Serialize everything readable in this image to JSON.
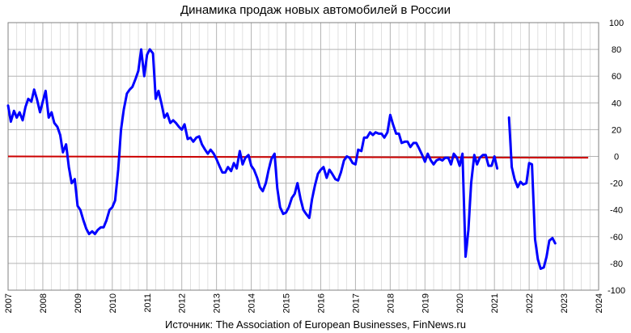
{
  "chart_data": {
    "type": "line",
    "title": "Динамика продаж новых автомобилей в России",
    "source": "Источник: The Association of European Businesses, FinNews.ru",
    "xlabel": "",
    "ylabel": "",
    "xlim": [
      2007,
      2024
    ],
    "ylim": [
      -100,
      100
    ],
    "x_ticks": [
      "2007",
      "2008",
      "2009",
      "2010",
      "2011",
      "2012",
      "2013",
      "2014",
      "2015",
      "2016",
      "2017",
      "2018",
      "2019",
      "2020",
      "2021",
      "2022",
      "2023",
      "2024"
    ],
    "y_ticks": [
      100,
      80,
      60,
      40,
      20,
      0,
      -20,
      -40,
      -60,
      -80,
      -100
    ],
    "grid": true,
    "legend": "none",
    "colors": {
      "series": "#0000ff",
      "zero_line": "#cc0000",
      "grid": "#b4b4b4"
    },
    "series": [
      {
        "segments": [
          [
            [
              2007.0,
              38
            ],
            [
              2007.08,
              26
            ],
            [
              2007.17,
              34
            ],
            [
              2007.25,
              29
            ],
            [
              2007.33,
              33
            ],
            [
              2007.42,
              27
            ],
            [
              2007.5,
              37
            ],
            [
              2007.58,
              43
            ],
            [
              2007.67,
              41
            ],
            [
              2007.75,
              50
            ],
            [
              2007.83,
              43
            ],
            [
              2007.92,
              33
            ],
            [
              2008.0,
              41
            ],
            [
              2008.08,
              49
            ],
            [
              2008.17,
              29
            ],
            [
              2008.25,
              33
            ],
            [
              2008.33,
              25
            ],
            [
              2008.42,
              22
            ],
            [
              2008.5,
              16
            ],
            [
              2008.58,
              3
            ],
            [
              2008.67,
              9
            ],
            [
              2008.75,
              -8
            ],
            [
              2008.83,
              -20
            ],
            [
              2008.92,
              -17
            ],
            [
              2009.0,
              -37
            ],
            [
              2009.08,
              -40
            ],
            [
              2009.17,
              -48
            ],
            [
              2009.25,
              -54
            ],
            [
              2009.33,
              -58
            ],
            [
              2009.42,
              -56
            ],
            [
              2009.5,
              -58
            ],
            [
              2009.58,
              -55
            ],
            [
              2009.67,
              -53
            ],
            [
              2009.75,
              -53
            ],
            [
              2009.83,
              -48
            ],
            [
              2009.92,
              -40
            ],
            [
              2010.0,
              -38
            ],
            [
              2010.08,
              -33
            ],
            [
              2010.17,
              -10
            ],
            [
              2010.25,
              20
            ],
            [
              2010.33,
              35
            ],
            [
              2010.42,
              47
            ],
            [
              2010.5,
              50
            ],
            [
              2010.58,
              52
            ],
            [
              2010.67,
              58
            ],
            [
              2010.75,
              64
            ],
            [
              2010.83,
              80
            ],
            [
              2010.92,
              60
            ],
            [
              2011.0,
              76
            ],
            [
              2011.08,
              80
            ],
            [
              2011.17,
              77
            ],
            [
              2011.25,
              43
            ],
            [
              2011.33,
              49
            ],
            [
              2011.42,
              39
            ],
            [
              2011.5,
              29
            ],
            [
              2011.58,
              32
            ],
            [
              2011.67,
              25
            ],
            [
              2011.75,
              27
            ],
            [
              2011.83,
              25
            ],
            [
              2011.92,
              22
            ],
            [
              2012.0,
              20
            ],
            [
              2012.08,
              24
            ],
            [
              2012.17,
              13
            ],
            [
              2012.25,
              14
            ],
            [
              2012.33,
              11
            ],
            [
              2012.42,
              14
            ],
            [
              2012.5,
              15
            ],
            [
              2012.58,
              9
            ],
            [
              2012.67,
              5
            ],
            [
              2012.75,
              2
            ],
            [
              2012.83,
              5
            ],
            [
              2012.92,
              2
            ],
            [
              2013.0,
              -2
            ],
            [
              2013.08,
              -7
            ],
            [
              2013.17,
              -12
            ],
            [
              2013.25,
              -12
            ],
            [
              2013.33,
              -8
            ],
            [
              2013.42,
              -11
            ],
            [
              2013.5,
              -5
            ],
            [
              2013.58,
              -9
            ],
            [
              2013.67,
              4
            ],
            [
              2013.75,
              -6
            ],
            [
              2013.83,
              -1
            ],
            [
              2013.92,
              1
            ],
            [
              2014.0,
              -7
            ],
            [
              2014.08,
              -10
            ],
            [
              2014.17,
              -16
            ],
            [
              2014.25,
              -23
            ],
            [
              2014.33,
              -26
            ],
            [
              2014.42,
              -20
            ],
            [
              2014.5,
              -10
            ],
            [
              2014.58,
              -2
            ],
            [
              2014.67,
              2
            ],
            [
              2014.75,
              -24
            ],
            [
              2014.83,
              -38
            ],
            [
              2014.92,
              -43
            ],
            [
              2015.0,
              -42
            ],
            [
              2015.08,
              -38
            ],
            [
              2015.17,
              -31
            ],
            [
              2015.25,
              -28
            ],
            [
              2015.33,
              -20
            ],
            [
              2015.42,
              -32
            ],
            [
              2015.5,
              -40
            ],
            [
              2015.58,
              -43
            ],
            [
              2015.67,
              -46
            ],
            [
              2015.75,
              -32
            ],
            [
              2015.83,
              -22
            ],
            [
              2015.92,
              -13
            ],
            [
              2016.0,
              -10
            ],
            [
              2016.08,
              -8
            ],
            [
              2016.17,
              -16
            ],
            [
              2016.25,
              -10
            ],
            [
              2016.33,
              -13
            ],
            [
              2016.42,
              -17
            ],
            [
              2016.5,
              -18
            ],
            [
              2016.58,
              -12
            ],
            [
              2016.67,
              -3
            ],
            [
              2016.75,
              0
            ],
            [
              2016.83,
              -1
            ],
            [
              2016.92,
              -5
            ],
            [
              2017.0,
              -6
            ],
            [
              2017.08,
              5
            ],
            [
              2017.17,
              4
            ],
            [
              2017.25,
              14
            ],
            [
              2017.33,
              14
            ],
            [
              2017.42,
              18
            ],
            [
              2017.5,
              16
            ],
            [
              2017.58,
              18
            ],
            [
              2017.67,
              17
            ],
            [
              2017.75,
              17
            ],
            [
              2017.83,
              14
            ],
            [
              2017.92,
              18
            ],
            [
              2018.0,
              31
            ],
            [
              2018.08,
              24
            ],
            [
              2018.17,
              17
            ],
            [
              2018.25,
              17
            ],
            [
              2018.33,
              10
            ],
            [
              2018.42,
              11
            ],
            [
              2018.5,
              11
            ],
            [
              2018.58,
              7
            ],
            [
              2018.67,
              10
            ],
            [
              2018.75,
              10
            ],
            [
              2018.83,
              6
            ],
            [
              2018.92,
              1
            ],
            [
              2019.0,
              -4
            ],
            [
              2019.08,
              2
            ],
            [
              2019.17,
              -3
            ],
            [
              2019.25,
              -6
            ],
            [
              2019.33,
              -3
            ],
            [
              2019.42,
              -2
            ],
            [
              2019.5,
              -3
            ],
            [
              2019.58,
              -1
            ],
            [
              2019.67,
              -1
            ],
            [
              2019.75,
              -6
            ],
            [
              2019.83,
              2
            ],
            [
              2019.92,
              -1
            ],
            [
              2020.0,
              -7
            ],
            [
              2020.08,
              2
            ],
            [
              2020.17,
              -75
            ],
            [
              2020.25,
              -55
            ],
            [
              2020.33,
              -20
            ],
            [
              2020.42,
              1
            ],
            [
              2020.5,
              -6
            ],
            [
              2020.58,
              -1
            ],
            [
              2020.67,
              1
            ],
            [
              2020.75,
              1
            ],
            [
              2020.83,
              -7
            ],
            [
              2020.92,
              -7
            ],
            [
              2021.0,
              0
            ],
            [
              2021.08,
              -9
            ]
          ],
          [
            [
              2021.42,
              29
            ],
            [
              2021.5,
              -8
            ],
            [
              2021.58,
              -17
            ],
            [
              2021.67,
              -23
            ],
            [
              2021.75,
              -19
            ],
            [
              2021.83,
              -21
            ],
            [
              2021.92,
              -20
            ],
            [
              2022.0,
              -5
            ],
            [
              2022.08,
              -6
            ],
            [
              2022.17,
              -62
            ],
            [
              2022.25,
              -77
            ],
            [
              2022.33,
              -84
            ],
            [
              2022.42,
              -83
            ],
            [
              2022.5,
              -75
            ],
            [
              2022.58,
              -63
            ],
            [
              2022.67,
              -61
            ],
            [
              2022.75,
              -65
            ]
          ]
        ]
      },
      {
        "reference_line": [
          [
            2007.0,
            0
          ],
          [
            2023.7,
            -1
          ]
        ]
      }
    ]
  }
}
